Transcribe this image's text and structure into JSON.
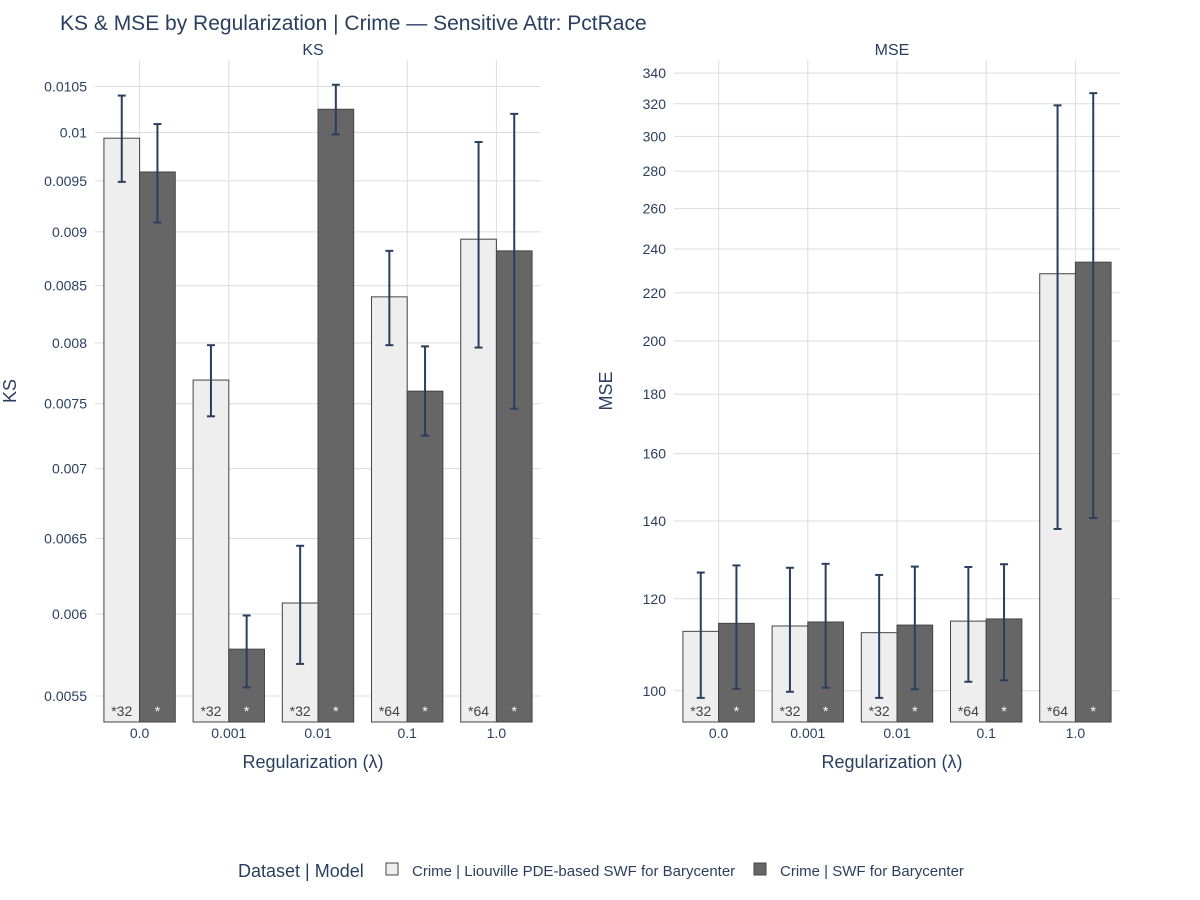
{
  "chart_data": {
    "title": "KS & MSE by Regularization | Crime — Sensitive Attr: PctRace",
    "categories": [
      "0.0",
      "0.001",
      "0.01",
      "0.1",
      "1.0"
    ],
    "xlabel": "Regularization (λ)",
    "legend": {
      "title": "Dataset | Model",
      "placement": "bottom-center"
    },
    "series": [
      {
        "name": "Crime | Liouville PDE-based SWF for Barycenter",
        "color": "#eeeeee",
        "label_color": "#444444"
      },
      {
        "name": "Crime | SWF for Barycenter",
        "color": "#666666",
        "label_color": "#ffffff"
      }
    ],
    "panels": [
      {
        "type": "bar",
        "subtitle": "KS",
        "ylabel": "KS",
        "scale": "log",
        "ylim": [
          0.00535,
          0.0108
        ],
        "yticks": [
          0.0055,
          0.006,
          0.0065,
          0.007,
          0.0075,
          0.008,
          0.0085,
          0.009,
          0.0095,
          0.01,
          0.0105
        ],
        "ytick_labels": [
          "0.0055",
          "0.006",
          "0.0065",
          "0.007",
          "0.0075",
          "0.008",
          "0.0085",
          "0.009",
          "0.0095",
          "0.01",
          "0.0105"
        ],
        "values": [
          [
            0.00994,
            0.00769,
            0.00607,
            0.0084,
            0.00893
          ],
          [
            0.00959,
            0.00578,
            0.01025,
            0.0076,
            0.00882
          ]
        ],
        "err_low": [
          [
            0.00949,
            0.0074,
            0.00569,
            0.00798,
            0.00796
          ],
          [
            0.00909,
            0.00555,
            0.00998,
            0.00725,
            0.00746
          ]
        ],
        "err_high": [
          [
            0.0104,
            0.00798,
            0.00645,
            0.00882,
            0.0099
          ],
          [
            0.01009,
            0.00599,
            0.01052,
            0.00797,
            0.0102
          ]
        ],
        "bar_labels": [
          [
            "*32",
            "*32",
            "*32",
            "*64",
            "*64"
          ],
          [
            "*",
            "*",
            "*",
            "*",
            "*"
          ]
        ]
      },
      {
        "type": "bar",
        "subtitle": "MSE",
        "ylabel": "MSE",
        "scale": "log",
        "ylim": [
          94,
          349
        ],
        "yticks": [
          100,
          120,
          140,
          160,
          180,
          200,
          220,
          240,
          260,
          280,
          300,
          320,
          340
        ],
        "ytick_labels": [
          "100",
          "120",
          "140",
          "160",
          "180",
          "200",
          "220",
          "240",
          "260",
          "280",
          "300",
          "320",
          "340"
        ],
        "values": [
          [
            112.5,
            113.7,
            112.2,
            114.8,
            228.5
          ],
          [
            114.3,
            114.6,
            113.9,
            115.3,
            233.8
          ]
        ],
        "err_low": [
          [
            98.6,
            99.8,
            98.6,
            101.8,
            137.8
          ],
          [
            100.4,
            100.6,
            100.3,
            102.1,
            140.8
          ]
        ],
        "err_high": [
          [
            126.4,
            127.6,
            125.8,
            127.8,
            319.0
          ],
          [
            128.2,
            128.6,
            127.9,
            128.5,
            326.8
          ]
        ],
        "bar_labels": [
          [
            "*32",
            "*32",
            "*32",
            "*64",
            "*64"
          ],
          [
            "*",
            "*",
            "*",
            "*",
            "*"
          ]
        ]
      }
    ]
  }
}
